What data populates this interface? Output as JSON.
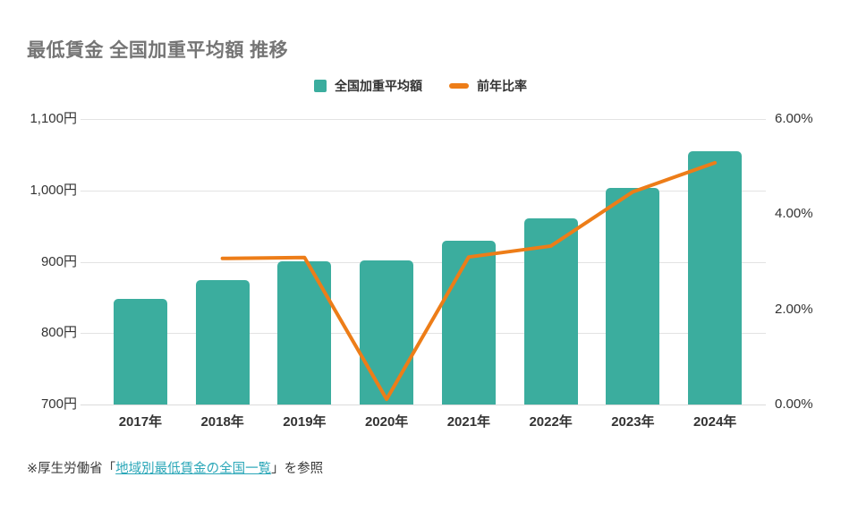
{
  "title": "最低賃金 全国加重平均額 推移",
  "legend": {
    "bar_label": "全国加重平均額",
    "line_label": "前年比率"
  },
  "footer": {
    "prefix": "※厚生労働省「",
    "link_text": "地域別最低賃金の全国一覧",
    "suffix": "」を参照"
  },
  "colors": {
    "bar": "#3BAD9E",
    "line": "#ED7D18",
    "title": "#757575",
    "axis_text": "#333333",
    "gridline": "#E3E3E3",
    "axisline": "#DBDBDB",
    "link": "#2BA7B8",
    "footer_text": "#3C3C3C"
  },
  "chart_data": {
    "type": "bar",
    "title": "最低賃金 全国加重平均額 推移",
    "categories": [
      "2017年",
      "2018年",
      "2019年",
      "2020年",
      "2021年",
      "2022年",
      "2023年",
      "2024年"
    ],
    "series": [
      {
        "name": "全国加重平均額",
        "type": "bar",
        "axis": "left",
        "unit": "円",
        "values": [
          848,
          874,
          901,
          902,
          930,
          961,
          1004,
          1055
        ]
      },
      {
        "name": "前年比率",
        "type": "line",
        "axis": "right",
        "unit": "%",
        "values": [
          null,
          3.07,
          3.09,
          0.11,
          3.1,
          3.33,
          4.47,
          5.08
        ]
      }
    ],
    "left_axis": {
      "min": 700,
      "max": 1100,
      "tick_values": [
        1100,
        1000,
        900,
        800,
        700
      ],
      "tick_labels": [
        "1,100円",
        "1,000円",
        "900円",
        "800円",
        "700円"
      ]
    },
    "right_axis": {
      "min": 0,
      "max": 6,
      "tick_values": [
        6,
        4,
        2,
        0
      ],
      "tick_labels": [
        "6.00%",
        "4.00%",
        "2.00%",
        "0.00%"
      ]
    },
    "legend_position": "top",
    "grid": true,
    "source_note": "※厚生労働省「地域別最低賃金の全国一覧」を参照"
  }
}
